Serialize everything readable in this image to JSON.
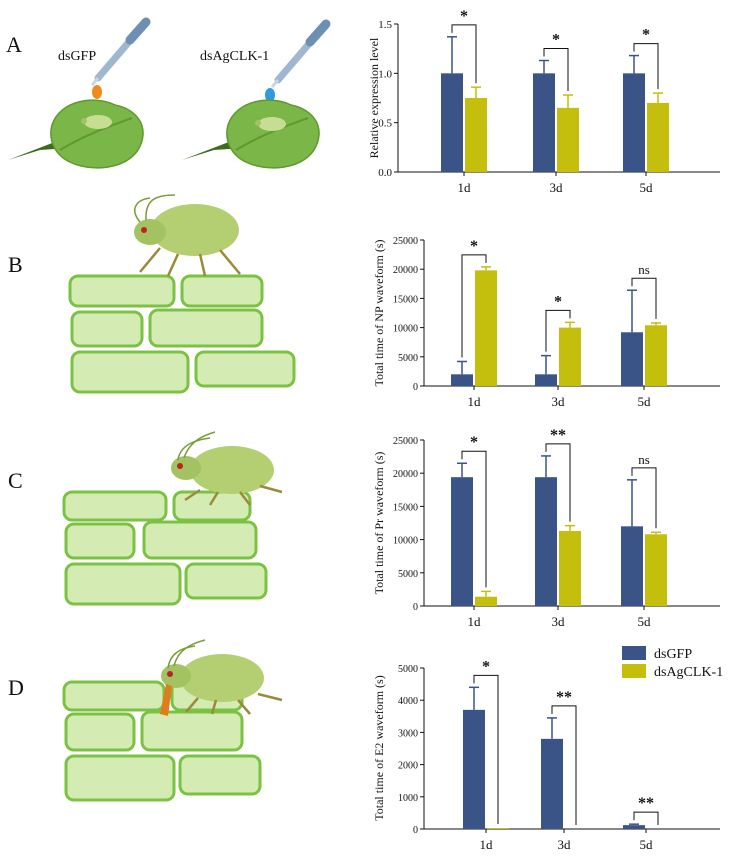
{
  "colors": {
    "dsGFP": "#3a5488",
    "dsAgCLK": "#c3bf0c",
    "leaf": "#7ab648",
    "leaf_dark": "#3e6b1f",
    "cell_fill": "#d4ecb4",
    "cell_stroke": "#7cc242",
    "aphid": "#b3cf72",
    "aphid_dark": "#7a9c3a",
    "stylet": "#e07b1e",
    "drop_orange": "#f08a1c",
    "drop_blue": "#2e9be0"
  },
  "panels": [
    {
      "letter": "A"
    },
    {
      "letter": "B"
    },
    {
      "letter": "C"
    },
    {
      "letter": "D"
    }
  ],
  "panelA_labels": {
    "left": "dsGFP",
    "right": "dsAgCLK-1"
  },
  "legend": [
    {
      "label": "dsGFP",
      "color_key": "dsGFP"
    },
    {
      "label": "dsAgCLK-1",
      "color_key": "dsAgCLK"
    }
  ],
  "chart_data": [
    {
      "type": "bar",
      "ylabel": "Relative expression level",
      "categories": [
        "1d",
        "3d",
        "5d"
      ],
      "ylim": [
        0,
        1.5
      ],
      "yticks": [
        "0.0",
        "0.5",
        "1.0",
        "1.5"
      ],
      "series": [
        {
          "name": "dsGFP",
          "values": [
            1.0,
            1.0,
            1.0
          ],
          "errors": [
            0.37,
            0.13,
            0.18
          ]
        },
        {
          "name": "dsAgCLK-1",
          "values": [
            0.75,
            0.65,
            0.7
          ],
          "errors": [
            0.11,
            0.13,
            0.1
          ]
        }
      ],
      "significance": [
        "*",
        "*",
        "*"
      ]
    },
    {
      "type": "bar",
      "ylabel": "Total time of NP waveform (s)",
      "categories": [
        "1d",
        "3d",
        "5d"
      ],
      "ylim": [
        0,
        25000
      ],
      "yticks": [
        "0",
        "5000",
        "10000",
        "15000",
        "20000",
        "25000"
      ],
      "series": [
        {
          "name": "dsGFP",
          "values": [
            2000,
            2000,
            9200
          ],
          "errors": [
            2200,
            3200,
            7200
          ]
        },
        {
          "name": "dsAgCLK-1",
          "values": [
            19800,
            10000,
            10400
          ],
          "errors": [
            600,
            900,
            400
          ]
        }
      ],
      "significance": [
        "*",
        "*",
        "ns"
      ]
    },
    {
      "type": "bar",
      "ylabel": "Total time of Pr waveform (s)",
      "categories": [
        "1d",
        "3d",
        "5d"
      ],
      "ylim": [
        0,
        25000
      ],
      "yticks": [
        "0",
        "5000",
        "10000",
        "15000",
        "20000",
        "25000"
      ],
      "series": [
        {
          "name": "dsGFP",
          "values": [
            19400,
            19400,
            12000
          ],
          "errors": [
            2100,
            3200,
            7000
          ]
        },
        {
          "name": "dsAgCLK-1",
          "values": [
            1400,
            11300,
            10800
          ],
          "errors": [
            800,
            800,
            300
          ]
        }
      ],
      "significance": [
        "*",
        "**",
        "ns"
      ]
    },
    {
      "type": "bar",
      "ylabel": "Total time of E2 waveform (s)",
      "categories": [
        "1d",
        "3d",
        "5d"
      ],
      "ylim": [
        0,
        5000
      ],
      "yticks": [
        "0",
        "1000",
        "2000",
        "3000",
        "4000",
        "5000"
      ],
      "series": [
        {
          "name": "dsGFP",
          "values": [
            3700,
            2800,
            120
          ],
          "errors": [
            700,
            650,
            30
          ]
        },
        {
          "name": "dsAgCLK-1",
          "values": [
            30,
            0,
            0
          ],
          "errors": [
            0,
            0,
            0
          ]
        }
      ],
      "significance": [
        "*",
        "**",
        "**"
      ]
    }
  ]
}
